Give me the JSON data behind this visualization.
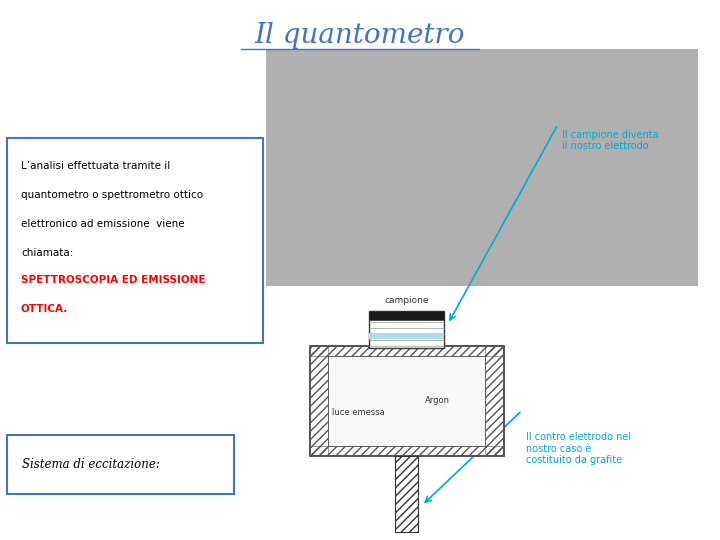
{
  "bg_color": "#ffffff",
  "title": "Il quantometro",
  "title_color": "#4472c4",
  "title_fontsize": 20,
  "text_black_1": "L’analisi effettuata tramite il",
  "text_black_2": "quantometro o spettrometro ottico",
  "text_black_3": "elettronico ad emissione  viene",
  "text_black_4": "chiamata:",
  "text_red_1": "SPETTROSCOPIA ED EMISSIONE",
  "text_red_2": "OTTICA.",
  "text_red_color": "#ff0000",
  "text_box_border_color": "#4472c4",
  "sistema_text": "Sistema di eccitazione:",
  "sistema_border_color": "#4472c4",
  "diagram_label_campione": "campione",
  "diagram_label_luce": "luce emessa",
  "diagram_label_argon": "Argon",
  "diagram_ann1_1": "Il campione diventa",
  "diagram_ann1_2": "il nostro elettrodo",
  "diagram_ann2_1": "Il contro elettrodo nel",
  "diagram_ann2_2": "nostro caso è",
  "diagram_ann2_3": "costituito da grafite",
  "diagram_color": "#333333",
  "diagram_ann_color": "#00aacc",
  "photo_color": "#b0b0b0"
}
